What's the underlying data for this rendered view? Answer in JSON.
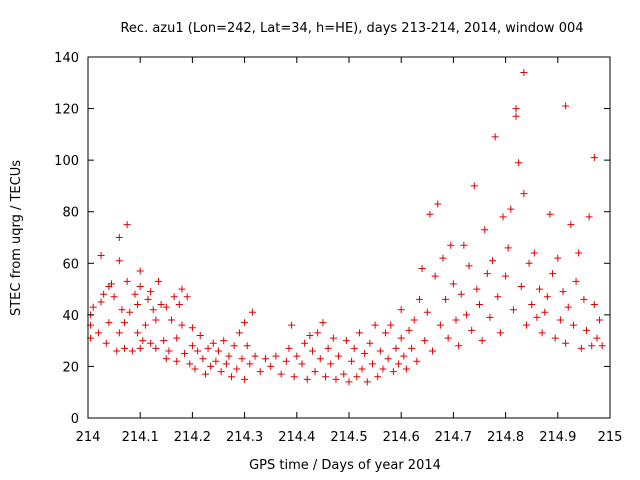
{
  "chart_data": {
    "type": "scatter",
    "title": "Rec. azu1 (Lon=242, Lat=34, h=HE), days 213-214, 2014, window 004",
    "xlabel": "GPS time / Days of year 2014",
    "ylabel": "STEC from uqrg / TECUs",
    "xlim": [
      214,
      215
    ],
    "ylim": [
      0,
      140
    ],
    "xticks": [
      214,
      214.1,
      214.2,
      214.3,
      214.4,
      214.5,
      214.6,
      214.7,
      214.8,
      214.9,
      215
    ],
    "xtick_labels": [
      "214",
      "214.1",
      "214.2",
      "214.3",
      "214.4",
      "214.5",
      "214.6",
      "214.7",
      "214.8",
      "214.9",
      "215"
    ],
    "yticks": [
      0,
      20,
      40,
      60,
      80,
      100,
      120,
      140
    ],
    "ytick_labels": [
      "0",
      "20",
      "40",
      "60",
      "80",
      "100",
      "120",
      "140"
    ],
    "grid": false,
    "marker": "+",
    "color": "#e00000",
    "series": [
      {
        "points": [
          [
            214.005,
            31
          ],
          [
            214.005,
            36
          ],
          [
            214.005,
            40
          ],
          [
            214.01,
            43
          ],
          [
            214.02,
            33
          ],
          [
            214.025,
            45
          ],
          [
            214.025,
            63
          ],
          [
            214.03,
            48
          ],
          [
            214.035,
            29
          ],
          [
            214.04,
            37
          ],
          [
            214.04,
            51
          ],
          [
            214.045,
            52
          ],
          [
            214.05,
            47
          ],
          [
            214.055,
            26
          ],
          [
            214.06,
            33
          ],
          [
            214.06,
            61
          ],
          [
            214.06,
            70
          ],
          [
            214.065,
            42
          ],
          [
            214.07,
            27
          ],
          [
            214.07,
            37
          ],
          [
            214.075,
            53
          ],
          [
            214.075,
            75
          ],
          [
            214.08,
            41
          ],
          [
            214.085,
            26
          ],
          [
            214.09,
            48
          ],
          [
            214.095,
            33
          ],
          [
            214.095,
            44
          ],
          [
            214.1,
            27
          ],
          [
            214.1,
            51
          ],
          [
            214.1,
            57
          ],
          [
            214.105,
            30
          ],
          [
            214.11,
            36
          ],
          [
            214.115,
            46
          ],
          [
            214.12,
            29
          ],
          [
            214.12,
            49
          ],
          [
            214.125,
            42
          ],
          [
            214.13,
            27
          ],
          [
            214.13,
            38
          ],
          [
            214.135,
            53
          ],
          [
            214.14,
            44
          ],
          [
            214.145,
            30
          ],
          [
            214.15,
            23
          ],
          [
            214.15,
            43
          ],
          [
            214.155,
            26
          ],
          [
            214.16,
            38
          ],
          [
            214.165,
            47
          ],
          [
            214.17,
            22
          ],
          [
            214.17,
            31
          ],
          [
            214.175,
            44
          ],
          [
            214.18,
            36
          ],
          [
            214.18,
            50
          ],
          [
            214.185,
            25
          ],
          [
            214.19,
            47
          ],
          [
            214.195,
            21
          ],
          [
            214.2,
            28
          ],
          [
            214.2,
            35
          ],
          [
            214.205,
            19
          ],
          [
            214.21,
            26
          ],
          [
            214.215,
            32
          ],
          [
            214.22,
            23
          ],
          [
            214.225,
            17
          ],
          [
            214.23,
            27
          ],
          [
            214.235,
            20
          ],
          [
            214.24,
            29
          ],
          [
            214.245,
            22
          ],
          [
            214.25,
            26
          ],
          [
            214.255,
            18
          ],
          [
            214.26,
            30
          ],
          [
            214.265,
            21
          ],
          [
            214.27,
            24
          ],
          [
            214.275,
            16
          ],
          [
            214.28,
            28
          ],
          [
            214.285,
            19
          ],
          [
            214.29,
            33
          ],
          [
            214.295,
            23
          ],
          [
            214.3,
            15
          ],
          [
            214.3,
            37
          ],
          [
            214.305,
            28
          ],
          [
            214.31,
            21
          ],
          [
            214.315,
            41
          ],
          [
            214.32,
            24
          ],
          [
            214.33,
            18
          ],
          [
            214.34,
            23
          ],
          [
            214.35,
            20
          ],
          [
            214.36,
            24
          ],
          [
            214.37,
            17
          ],
          [
            214.38,
            22
          ],
          [
            214.385,
            27
          ],
          [
            214.39,
            36
          ],
          [
            214.395,
            16
          ],
          [
            214.4,
            24
          ],
          [
            214.41,
            21
          ],
          [
            214.415,
            29
          ],
          [
            214.42,
            15
          ],
          [
            214.425,
            32
          ],
          [
            214.43,
            26
          ],
          [
            214.435,
            18
          ],
          [
            214.44,
            33
          ],
          [
            214.445,
            23
          ],
          [
            214.45,
            37
          ],
          [
            214.455,
            16
          ],
          [
            214.46,
            27
          ],
          [
            214.465,
            21
          ],
          [
            214.47,
            31
          ],
          [
            214.475,
            15
          ],
          [
            214.48,
            24
          ],
          [
            214.49,
            17
          ],
          [
            214.495,
            30
          ],
          [
            214.5,
            14
          ],
          [
            214.505,
            22
          ],
          [
            214.51,
            27
          ],
          [
            214.515,
            16
          ],
          [
            214.52,
            33
          ],
          [
            214.525,
            19
          ],
          [
            214.53,
            25
          ],
          [
            214.535,
            14
          ],
          [
            214.54,
            29
          ],
          [
            214.545,
            21
          ],
          [
            214.55,
            36
          ],
          [
            214.555,
            16
          ],
          [
            214.56,
            26
          ],
          [
            214.565,
            19
          ],
          [
            214.57,
            33
          ],
          [
            214.575,
            23
          ],
          [
            214.58,
            36
          ],
          [
            214.585,
            18
          ],
          [
            214.59,
            27
          ],
          [
            214.595,
            21
          ],
          [
            214.6,
            31
          ],
          [
            214.6,
            42
          ],
          [
            214.605,
            24
          ],
          [
            214.61,
            19
          ],
          [
            214.615,
            34
          ],
          [
            214.62,
            27
          ],
          [
            214.625,
            38
          ],
          [
            214.63,
            22
          ],
          [
            214.635,
            46
          ],
          [
            214.64,
            58
          ],
          [
            214.645,
            30
          ],
          [
            214.65,
            41
          ],
          [
            214.655,
            79
          ],
          [
            214.66,
            26
          ],
          [
            214.665,
            55
          ],
          [
            214.67,
            83
          ],
          [
            214.675,
            36
          ],
          [
            214.68,
            62
          ],
          [
            214.685,
            46
          ],
          [
            214.69,
            31
          ],
          [
            214.695,
            67
          ],
          [
            214.7,
            52
          ],
          [
            214.705,
            38
          ],
          [
            214.71,
            28
          ],
          [
            214.715,
            48
          ],
          [
            214.72,
            67
          ],
          [
            214.725,
            40
          ],
          [
            214.73,
            59
          ],
          [
            214.735,
            34
          ],
          [
            214.74,
            90
          ],
          [
            214.745,
            50
          ],
          [
            214.75,
            44
          ],
          [
            214.755,
            30
          ],
          [
            214.76,
            73
          ],
          [
            214.765,
            56
          ],
          [
            214.77,
            39
          ],
          [
            214.775,
            61
          ],
          [
            214.78,
            109
          ],
          [
            214.785,
            47
          ],
          [
            214.79,
            33
          ],
          [
            214.795,
            78
          ],
          [
            214.8,
            55
          ],
          [
            214.805,
            66
          ],
          [
            214.81,
            81
          ],
          [
            214.815,
            42
          ],
          [
            214.82,
            117
          ],
          [
            214.82,
            120
          ],
          [
            214.825,
            99
          ],
          [
            214.83,
            51
          ],
          [
            214.835,
            87
          ],
          [
            214.835,
            134
          ],
          [
            214.84,
            36
          ],
          [
            214.845,
            60
          ],
          [
            214.85,
            44
          ],
          [
            214.855,
            64
          ],
          [
            214.86,
            39
          ],
          [
            214.865,
            50
          ],
          [
            214.87,
            33
          ],
          [
            214.875,
            41
          ],
          [
            214.88,
            47
          ],
          [
            214.885,
            79
          ],
          [
            214.89,
            56
          ],
          [
            214.895,
            31
          ],
          [
            214.9,
            62
          ],
          [
            214.905,
            38
          ],
          [
            214.91,
            49
          ],
          [
            214.915,
            29
          ],
          [
            214.915,
            121
          ],
          [
            214.92,
            43
          ],
          [
            214.925,
            75
          ],
          [
            214.93,
            36
          ],
          [
            214.935,
            53
          ],
          [
            214.94,
            64
          ],
          [
            214.945,
            27
          ],
          [
            214.95,
            46
          ],
          [
            214.955,
            34
          ],
          [
            214.96,
            78
          ],
          [
            214.965,
            28
          ],
          [
            214.97,
            44
          ],
          [
            214.97,
            101
          ],
          [
            214.975,
            31
          ],
          [
            214.98,
            38
          ],
          [
            214.985,
            28
          ]
        ]
      }
    ]
  }
}
